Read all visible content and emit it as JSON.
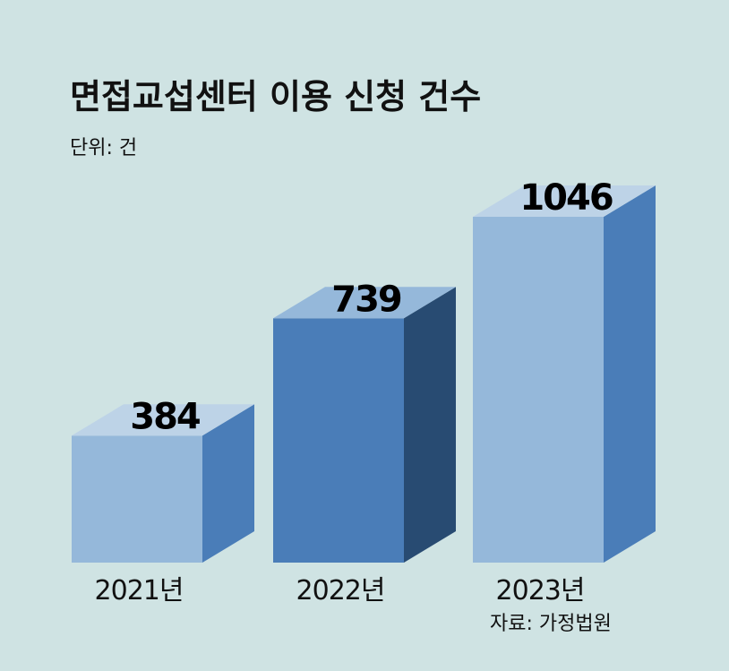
{
  "chart_data": {
    "type": "bar",
    "title": "면접교섭센터 이용 신청 건수",
    "unit": "단위: 건",
    "categories": [
      "2021년",
      "2022년",
      "2023년"
    ],
    "values": [
      384,
      739,
      1046
    ],
    "source": "자료: 가정법원",
    "colors": [
      {
        "front": "#95b8da",
        "side": "#4a7db8",
        "top": "#bdd3e7"
      },
      {
        "front": "#4a7db8",
        "side": "#284b72",
        "top": "#95b8da"
      },
      {
        "front": "#95b8da",
        "side": "#4a7db8",
        "top": "#bdd3e7"
      }
    ]
  }
}
